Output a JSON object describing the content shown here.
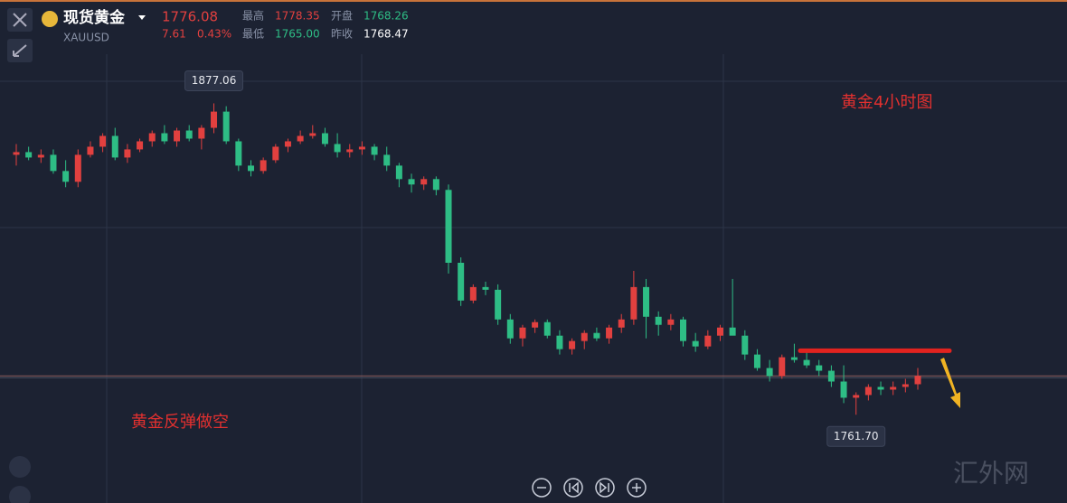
{
  "header": {
    "name": "现货黄金",
    "symbol": "XAUUSD",
    "last": 1776.08,
    "change": "7.61",
    "change_pct": "0.43%",
    "high_label": "最高",
    "high": "1778.35",
    "open_label": "开盘",
    "open": "1768.26",
    "low_label": "最低",
    "low": "1765.00",
    "prev_close_label": "昨收",
    "prev_close": "1768.47"
  },
  "chart_data": {
    "type": "candlestick",
    "annotations": {
      "title": "黄金4小时图",
      "note": "黄金反弹做空",
      "max_label": "1877.06",
      "min_label": "1761.70",
      "watermark": "汇外网"
    },
    "up_color": "#e2403f",
    "down_color": "#2ebd85",
    "ylim": [
      1729,
      1910
    ],
    "resistance": 1785.4,
    "open": [
      1858,
      1859,
      1857,
      1858,
      1852,
      1848,
      1858,
      1861,
      1865,
      1857,
      1860,
      1863,
      1866,
      1863,
      1867,
      1864,
      1868,
      1874,
      1863,
      1854,
      1852,
      1856,
      1861,
      1863,
      1865,
      1866,
      1862,
      1859,
      1860,
      1861,
      1858,
      1854,
      1849,
      1847,
      1849,
      1845,
      1818,
      1804,
      1809,
      1808,
      1797,
      1790,
      1794,
      1796,
      1791,
      1786,
      1789,
      1792,
      1790,
      1794,
      1797,
      1809,
      1798,
      1795,
      1797,
      1789,
      1787,
      1791,
      1794,
      1791,
      1784,
      1779,
      1776,
      1783,
      1782,
      1780,
      1778,
      1774,
      1768,
      1769,
      1772,
      1771,
      1772,
      1773
    ],
    "high": [
      1862,
      1861,
      1860,
      1860,
      1856,
      1860,
      1863,
      1866,
      1868,
      1862,
      1864,
      1867,
      1869,
      1868,
      1869,
      1869,
      1877.06,
      1876,
      1864,
      1856,
      1857,
      1862,
      1864,
      1867,
      1869,
      1868,
      1866,
      1862,
      1863,
      1862,
      1861,
      1855,
      1851,
      1850,
      1850,
      1847,
      1820,
      1810,
      1811,
      1810,
      1799,
      1795,
      1797,
      1797,
      1793,
      1790,
      1793,
      1794,
      1795,
      1799,
      1815,
      1812,
      1800,
      1799,
      1798,
      1792,
      1793,
      1795,
      1812,
      1793,
      1786,
      1782,
      1784,
      1788,
      1786,
      1782,
      1780,
      1780,
      1770,
      1773,
      1774,
      1774,
      1775,
      1779
    ],
    "low": [
      1854,
      1856,
      1855,
      1851,
      1846,
      1846,
      1857,
      1859,
      1856,
      1855,
      1859,
      1861,
      1862,
      1861,
      1863,
      1860,
      1866,
      1862,
      1852,
      1850,
      1851,
      1855,
      1859,
      1862,
      1864,
      1861,
      1857,
      1857,
      1858,
      1856,
      1852,
      1846,
      1844,
      1845,
      1843,
      1814,
      1802,
      1803,
      1806,
      1795,
      1788,
      1787,
      1792,
      1790,
      1784,
      1784,
      1786,
      1789,
      1788,
      1792,
      1795,
      1790,
      1791,
      1793,
      1787,
      1785,
      1786,
      1789,
      1792,
      1782,
      1778,
      1774,
      1775,
      1781,
      1779,
      1776,
      1772,
      1766,
      1761.7,
      1767,
      1769,
      1769,
      1770,
      1771
    ],
    "close": [
      1859,
      1857,
      1858,
      1852,
      1848,
      1858,
      1861,
      1865,
      1857,
      1860,
      1863,
      1866,
      1863,
      1867,
      1864,
      1868,
      1874,
      1863,
      1854,
      1852,
      1856,
      1861,
      1863,
      1865,
      1866,
      1862,
      1859,
      1860,
      1861,
      1858,
      1854,
      1849,
      1847,
      1849,
      1845,
      1818,
      1804,
      1809,
      1808,
      1797,
      1790,
      1794,
      1796,
      1791,
      1786,
      1789,
      1792,
      1790,
      1794,
      1797,
      1809,
      1798,
      1795,
      1797,
      1789,
      1787,
      1791,
      1794,
      1791,
      1784,
      1779,
      1776,
      1783,
      1782,
      1780,
      1778,
      1774,
      1768,
      1769,
      1772,
      1771,
      1772,
      1773,
      1776.08
    ]
  }
}
